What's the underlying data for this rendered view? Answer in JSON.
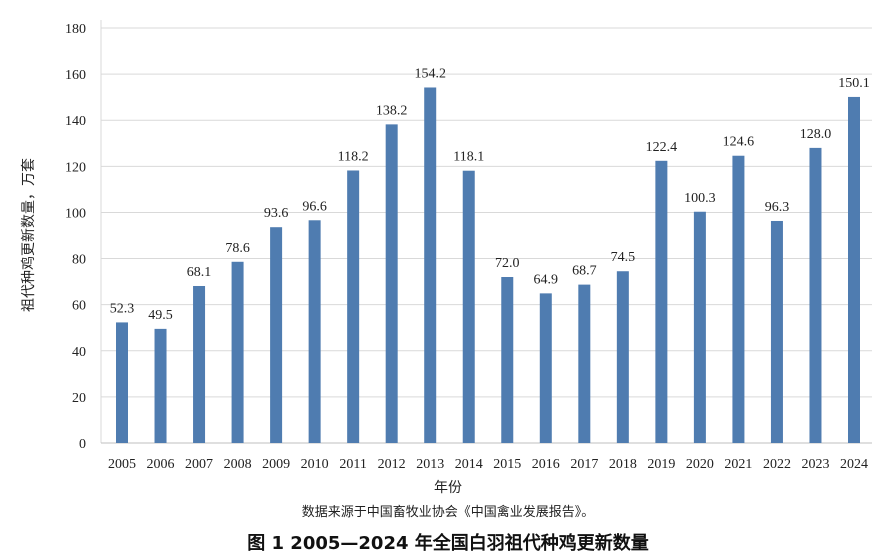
{
  "chart_data": {
    "type": "bar",
    "title": "图 1 2005—2024 年全国白羽祖代种鸡更新数量",
    "source_note": "数据来源于中国畜牧业协会《中国禽业发展报告》。",
    "xlabel": "年份",
    "ylabel": "祖代种鸡更新数量，万套",
    "ylim": [
      0,
      180
    ],
    "yticks": [
      0,
      20,
      40,
      60,
      80,
      100,
      120,
      140,
      160,
      180
    ],
    "grid": true,
    "bar_color": "#4f7cb0",
    "categories": [
      "2005",
      "2006",
      "2007",
      "2008",
      "2009",
      "2010",
      "2011",
      "2012",
      "2013",
      "2014",
      "2015",
      "2016",
      "2017",
      "2018",
      "2019",
      "2020",
      "2021",
      "2022",
      "2023",
      "2024"
    ],
    "values": [
      52.3,
      49.5,
      68.1,
      78.6,
      93.6,
      96.6,
      118.2,
      138.2,
      154.2,
      118.1,
      72.0,
      64.9,
      68.7,
      74.5,
      122.4,
      100.3,
      124.6,
      96.3,
      128.0,
      150.1
    ],
    "data_labels": [
      "52.3",
      "49.5",
      "68.1",
      "78.6",
      "93.6",
      "96.6",
      "118.2",
      "138.2",
      "154.2",
      "118.1",
      "72.0",
      "64.9",
      "68.7",
      "74.5",
      "122.4",
      "100.3",
      "124.6",
      "96.3",
      "128.0",
      "150.1"
    ]
  }
}
